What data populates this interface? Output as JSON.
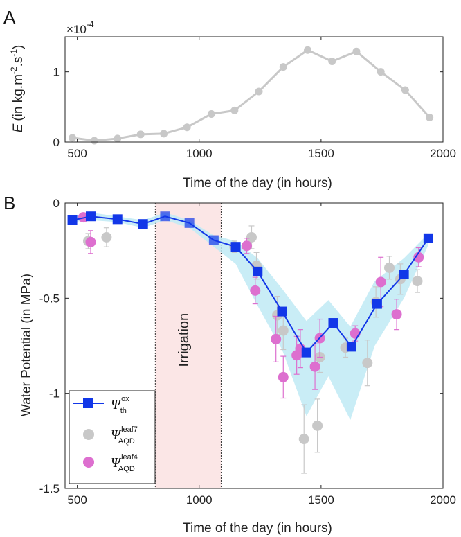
{
  "chart_data": [
    {
      "panel_label": "A",
      "type": "line",
      "multiplier": "×10",
      "multiplier_exp": "-4",
      "ylabel_var": "E",
      "ylabel_units": "(in kg.m",
      "ylabel_exp1": "-2",
      "ylabel_mid": ".s",
      "ylabel_exp2": "-1",
      "ylabel_close": ")",
      "xlabel": "Time of the day (in hours)",
      "xlim": [
        450,
        2000
      ],
      "ylim": [
        0,
        1.5
      ],
      "xticks": [
        500,
        1000,
        1500,
        2000
      ],
      "yticks": [
        0,
        1
      ],
      "grid": false,
      "series": [
        {
          "color": "#c8c8c8",
          "x": [
            480,
            570,
            665,
            760,
            855,
            950,
            1050,
            1145,
            1245,
            1345,
            1445,
            1545,
            1645,
            1745,
            1845,
            1945
          ],
          "y": [
            0.06,
            0.02,
            0.05,
            0.11,
            0.12,
            0.21,
            0.4,
            0.45,
            0.72,
            1.07,
            1.31,
            1.15,
            1.29,
            1.0,
            0.74,
            0.35
          ]
        }
      ]
    },
    {
      "panel_label": "B",
      "type": "line",
      "ylabel": "Water Potential (in MPa)",
      "xlabel": "Time of the day (in hours)",
      "xlim": [
        450,
        2000
      ],
      "ylim": [
        -1.5,
        0
      ],
      "xticks": [
        500,
        1000,
        1500,
        2000
      ],
      "yticks": [
        0,
        -0.5,
        -1,
        -1.5
      ],
      "ytick_labels": [
        "0",
        "-0.5",
        "-1",
        "-1.5"
      ],
      "grid": false,
      "legend_position": "bottom-left",
      "irrigation": {
        "label": "Irrigation",
        "start": 820,
        "end": 1090,
        "color": "#fbe6e6"
      },
      "band": {
        "color": "#bfeaf5",
        "x": [
          480,
          555,
          665,
          770,
          860,
          960,
          1060,
          1150,
          1240,
          1340,
          1440,
          1530,
          1620,
          1720,
          1840,
          1940
        ],
        "upper": [
          -0.07,
          -0.05,
          -0.07,
          -0.09,
          -0.05,
          -0.09,
          -0.17,
          -0.2,
          -0.29,
          -0.45,
          -0.62,
          -0.51,
          -0.65,
          -0.41,
          -0.29,
          -0.16
        ],
        "lower": [
          -0.1,
          -0.09,
          -0.1,
          -0.13,
          -0.09,
          -0.13,
          -0.23,
          -0.32,
          -0.54,
          -0.77,
          -1.12,
          -0.91,
          -1.14,
          -0.75,
          -0.5,
          -0.22
        ]
      },
      "series": [
        {
          "name": "Ψ",
          "name_sup": "ox",
          "name_sub": "th",
          "marker": "square",
          "color": "#1237e8",
          "x": [
            480,
            555,
            665,
            770,
            860,
            960,
            1060,
            1150,
            1240,
            1340,
            1440,
            1550,
            1625,
            1730,
            1840,
            1940
          ],
          "y": [
            -0.09,
            -0.07,
            -0.085,
            -0.11,
            -0.07,
            -0.105,
            -0.195,
            -0.23,
            -0.36,
            -0.57,
            -0.785,
            -0.63,
            -0.755,
            -0.53,
            -0.375,
            -0.185
          ]
        },
        {
          "name": "Ψ",
          "name_sup": "leaf7",
          "name_sub": "AQD",
          "marker": "circle",
          "color": "#c8c8c8",
          "x": [
            545,
            620,
            1145,
            1215,
            1235,
            1320,
            1345,
            1430,
            1485,
            1495,
            1600,
            1690,
            1725,
            1780,
            1825,
            1895
          ],
          "y": [
            -0.2,
            -0.18,
            -0.23,
            -0.18,
            -0.33,
            -0.59,
            -0.67,
            -1.24,
            -1.17,
            -0.81,
            -0.76,
            -0.84,
            -0.52,
            -0.34,
            -0.4,
            -0.41
          ],
          "err": [
            0.04,
            0.05,
            0.03,
            0.06,
            0.07,
            0.1,
            0.1,
            0.18,
            0.14,
            0.08,
            0.05,
            0.12,
            0.08,
            0.06,
            0.08,
            0.06
          ]
        },
        {
          "name": "Ψ",
          "name_sup": "leaf4",
          "name_sub": "AQD",
          "marker": "circle",
          "color": "#dd6fcf",
          "x": [
            525,
            555,
            1195,
            1230,
            1315,
            1345,
            1400,
            1415,
            1475,
            1495,
            1640,
            1745,
            1810,
            1900
          ],
          "y": [
            -0.075,
            -0.205,
            -0.225,
            -0.46,
            -0.715,
            -0.915,
            -0.8,
            -0.765,
            -0.86,
            -0.71,
            -0.685,
            -0.415,
            -0.585,
            -0.285
          ],
          "err": [
            0.02,
            0.06,
            0.04,
            0.07,
            0.12,
            0.11,
            0.1,
            0.1,
            0.12,
            0.1,
            0.04,
            0.13,
            0.08,
            0.05
          ]
        }
      ]
    }
  ]
}
